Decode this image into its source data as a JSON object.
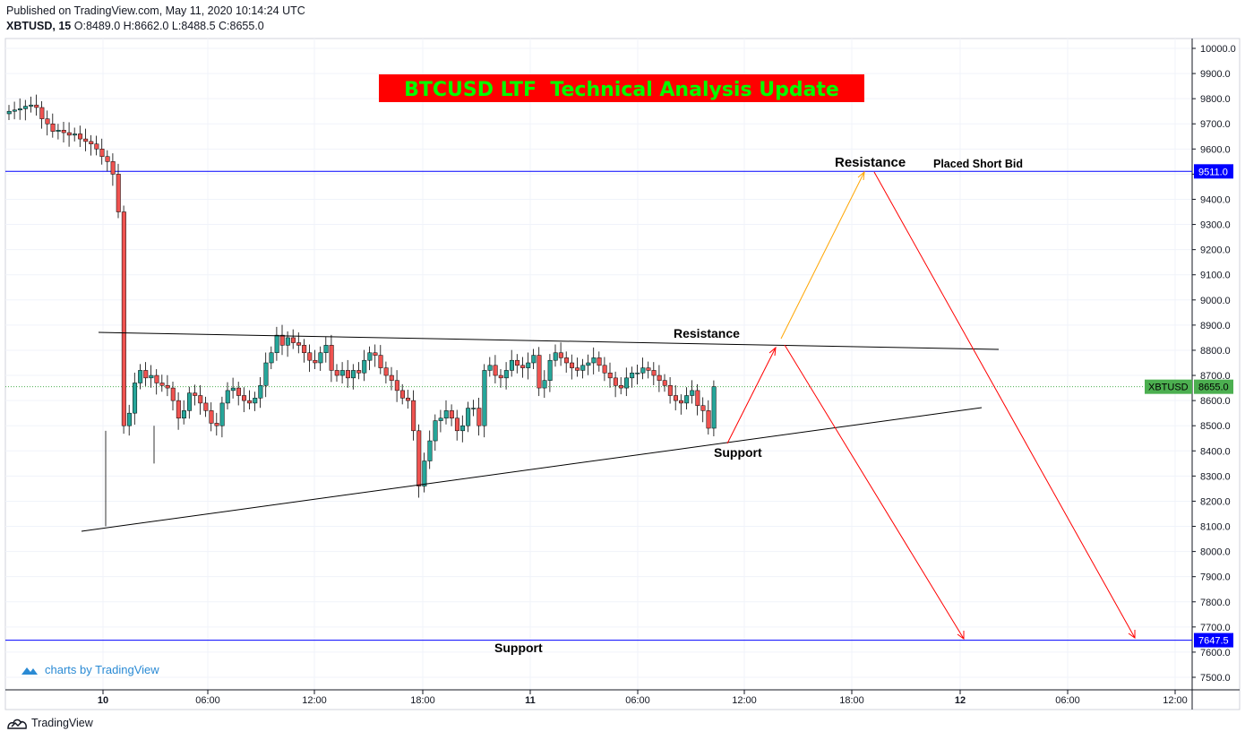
{
  "header": {
    "published": "Published on TradingView.com, May 11, 2020 10:14:24 UTC",
    "symbol": "XBTUSD, 15",
    "o_label": "O:",
    "o": "8489.0",
    "h_label": "H:",
    "h": "8662.0",
    "l_label": "L:",
    "l": "8488.5",
    "c_label": "C:",
    "c": "8655.0"
  },
  "watermark": {
    "prefix": "charts by ",
    "brand": "TradingView"
  },
  "footer": {
    "brand": "TradingView"
  },
  "colors": {
    "up": "#26a69a",
    "down": "#ef5350",
    "blue_line": "#0000ff",
    "price_line": "#4caf50",
    "arrow_red": "#ff0000",
    "arrow_orange": "#ffa500",
    "title_bg": "#ff0000",
    "title_fg": "#00ff00"
  },
  "chart_data": {
    "type": "candlestick",
    "title": "BTCUSD LTF  Technical Analysis Update",
    "ylim": [
      7450,
      10050
    ],
    "y_ticks": [
      7500,
      7600,
      7700,
      7800,
      7900,
      8000,
      8100,
      8200,
      8300,
      8400,
      8500,
      8600,
      8700,
      8800,
      8900,
      9000,
      9100,
      9200,
      9300,
      9400,
      9500,
      9600,
      9700,
      9800,
      9900,
      10000
    ],
    "x_ticks": [
      "10",
      "06:00",
      "12:00",
      "18:00",
      "11",
      "06:00",
      "12:00",
      "18:00",
      "12",
      "06:00",
      "12:00"
    ],
    "last_price": {
      "symbol": "XBTUSD",
      "value": "8655.0"
    },
    "levels": [
      {
        "value": 9511.0,
        "label": "9511.0"
      },
      {
        "value": 7647.5,
        "label": "7647.5"
      }
    ],
    "candles_close": [
      9750,
      9755,
      9760,
      9770,
      9775,
      9765,
      9720,
      9700,
      9670,
      9675,
      9665,
      9655,
      9660,
      9640,
      9630,
      9620,
      9600,
      9570,
      9550,
      9500,
      9350,
      8500,
      8550,
      8670,
      8720,
      8690,
      8700,
      8670,
      8660,
      8650,
      8600,
      8530,
      8560,
      8630,
      8620,
      8590,
      8560,
      8510,
      8500,
      8590,
      8640,
      8650,
      8620,
      8600,
      8590,
      8610,
      8660,
      8750,
      8790,
      8860,
      8820,
      8850,
      8830,
      8820,
      8790,
      8760,
      8750,
      8790,
      8820,
      8720,
      8700,
      8720,
      8690,
      8720,
      8710,
      8760,
      8790,
      8780,
      8730,
      8700,
      8680,
      8640,
      8610,
      8600,
      8480,
      8260,
      8360,
      8440,
      8520,
      8530,
      8560,
      8530,
      8480,
      8500,
      8570,
      8570,
      8500,
      8720,
      8740,
      8700,
      8690,
      8720,
      8760,
      8740,
      8730,
      8750,
      8780,
      8650,
      8680,
      8760,
      8790,
      8770,
      8750,
      8730,
      8720,
      8740,
      8750,
      8770,
      8740,
      8710,
      8690,
      8660,
      8650,
      8690,
      8710,
      8710,
      8730,
      8720,
      8700,
      8680,
      8660,
      8620,
      8600,
      8590,
      8620,
      8640,
      8580,
      8560,
      8490,
      8655
    ]
  },
  "annotations": {
    "resistance_top": "Resistance",
    "placed_short": "Placed Short Bid",
    "resistance_mid": "Resistance",
    "support_mid": "Support",
    "support_bottom": "Support"
  }
}
